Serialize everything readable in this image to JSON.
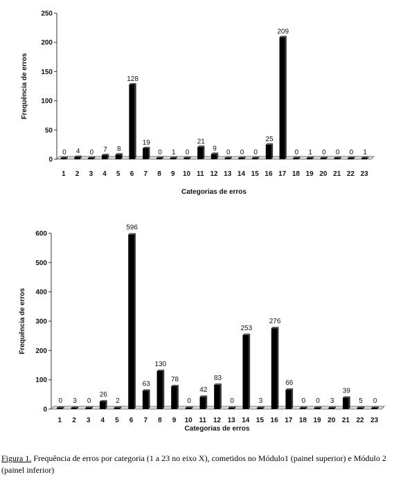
{
  "chart_data": [
    {
      "type": "bar",
      "categories": [
        "1",
        "2",
        "3",
        "4",
        "5",
        "6",
        "7",
        "8",
        "9",
        "10",
        "11",
        "12",
        "13",
        "14",
        "15",
        "16",
        "17",
        "18",
        "19",
        "20",
        "21",
        "22",
        "23"
      ],
      "values": [
        0,
        4,
        0,
        7,
        8,
        128,
        19,
        0,
        1,
        0,
        21,
        9,
        0,
        0,
        0,
        25,
        209,
        0,
        1,
        0,
        0,
        0,
        1
      ],
      "data_labels": [
        "0",
        "4",
        "0",
        "7",
        "8",
        "128",
        "19",
        "0",
        "1",
        "0",
        "21",
        "9",
        "0",
        "0",
        "0",
        "25",
        "209",
        "0",
        "1",
        "0",
        "0",
        "0",
        "1"
      ],
      "xlabel": "Categorias de erros",
      "ylabel": "Frequência de erros",
      "ylim": [
        0,
        250
      ],
      "yticks": [
        "0",
        "50",
        "100",
        "150",
        "200",
        "250"
      ],
      "grid": false,
      "bar_color": "#000000"
    },
    {
      "type": "bar",
      "categories": [
        "1",
        "2",
        "3",
        "4",
        "5",
        "6",
        "7",
        "8",
        "9",
        "10",
        "11",
        "12",
        "13",
        "14",
        "15",
        "16",
        "17",
        "18",
        "19",
        "20",
        "21",
        "22",
        "23"
      ],
      "values": [
        0,
        3,
        0,
        26,
        2,
        596,
        63,
        130,
        78,
        0,
        42,
        83,
        0,
        253,
        3,
        276,
        66,
        0,
        0,
        3,
        39,
        5,
        0
      ],
      "data_labels": [
        "0",
        "3",
        "0",
        "26",
        "2",
        "596",
        "63",
        "130",
        "78",
        "0",
        "42",
        "83",
        "0",
        "253",
        "3",
        "276",
        "66",
        "0",
        "0",
        "3",
        "39",
        "5",
        "0"
      ],
      "xlabel": "Categorias de erros",
      "ylabel": "Frequência de erros",
      "ylim": [
        0,
        600
      ],
      "yticks": [
        "0",
        "100",
        "200",
        "300",
        "400",
        "500",
        "600"
      ],
      "grid": false,
      "bar_color": "#000000"
    }
  ],
  "caption": {
    "ref": "Figura 1.",
    "text": " Frequência de erros por categoria (1 a 23 no eixo X), cometidos no Módulo1 (painel superior) e Módulo 2 (painel inferior)"
  }
}
